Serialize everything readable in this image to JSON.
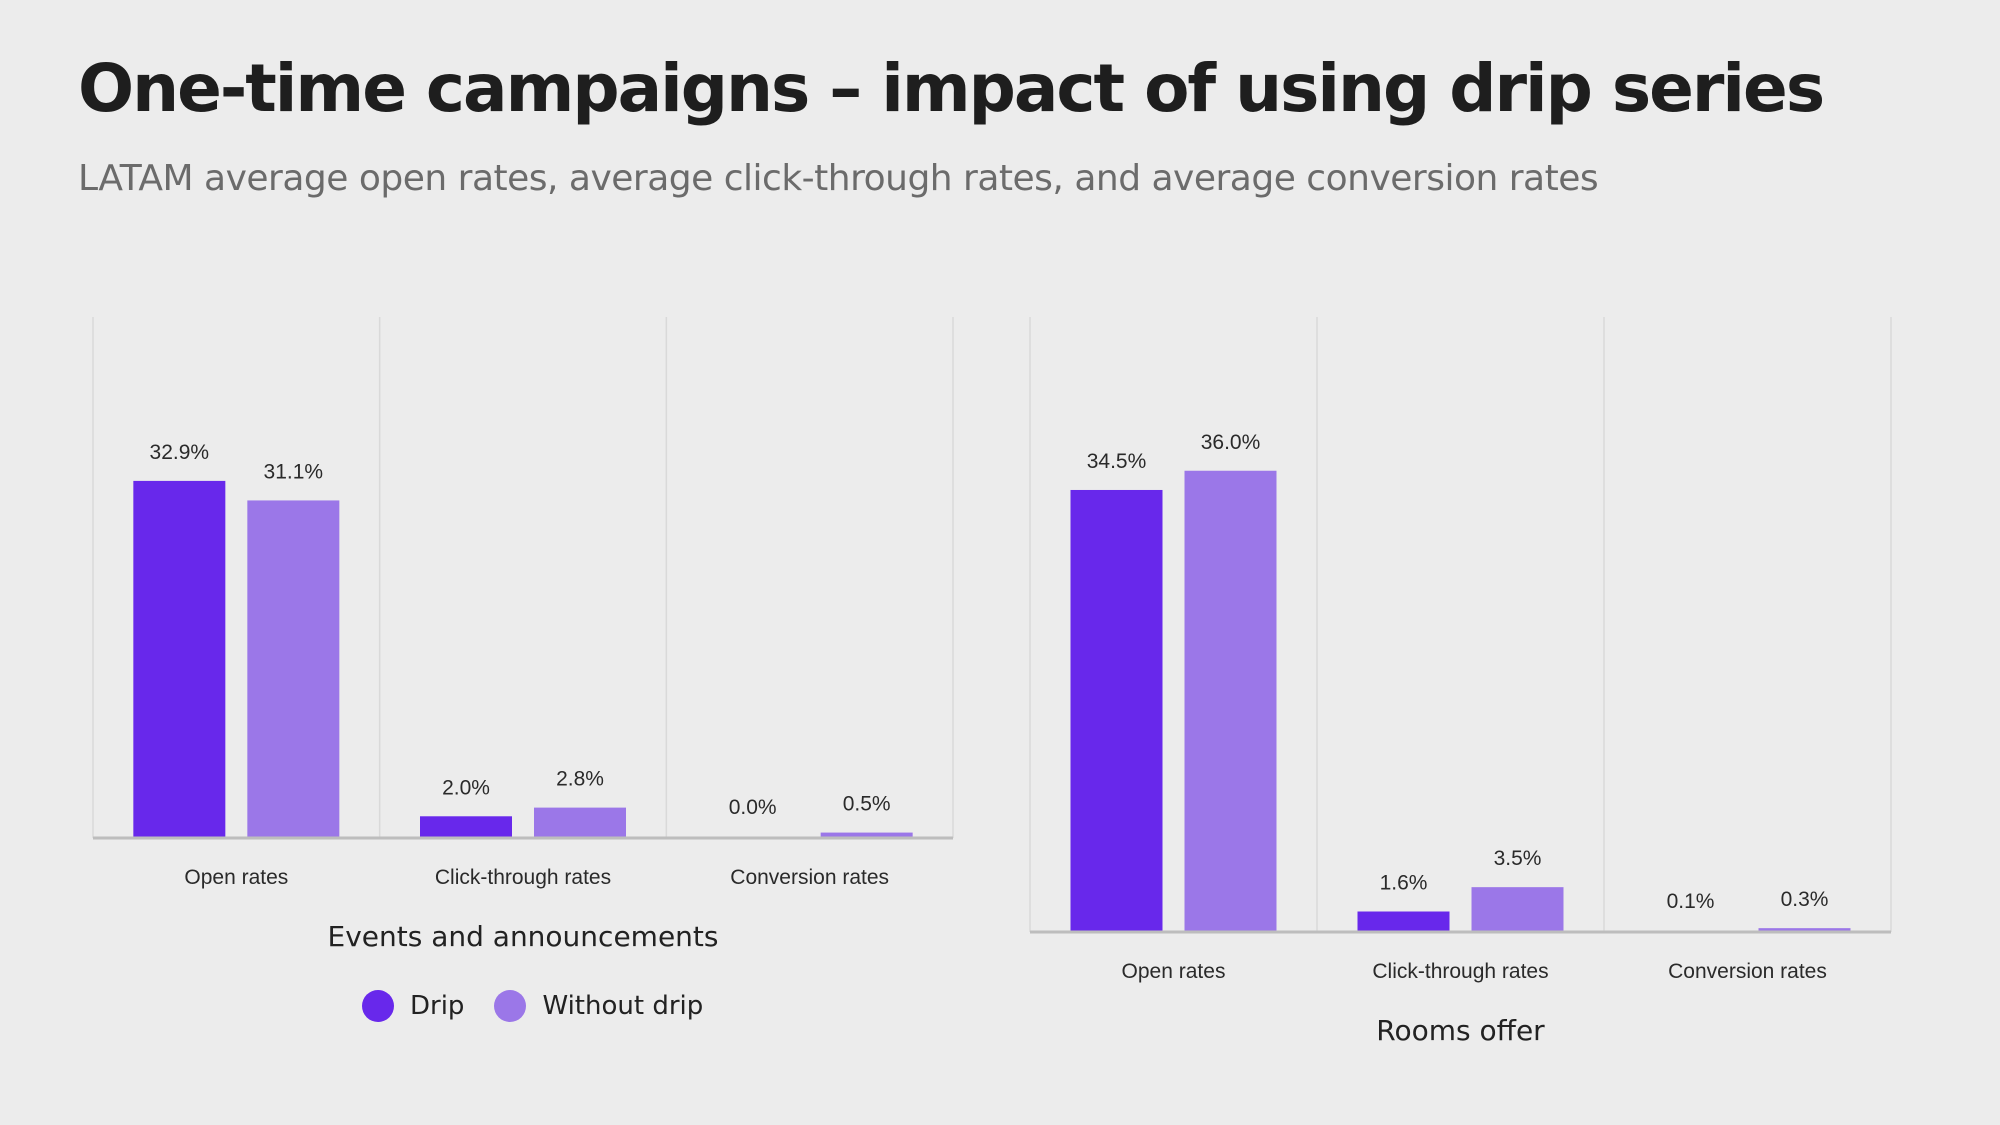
{
  "header": {
    "title": "One-time campaigns – impact of using drip series",
    "subtitle": "LATAM average open rates, average click-through rates, and average conversion rates"
  },
  "legend": [
    {
      "label": "Drip",
      "color": "#6828EB"
    },
    {
      "label": "Without drip",
      "color": "#9B77E8"
    }
  ],
  "chart_data": [
    {
      "type": "bar",
      "title": "Events and announcements",
      "categories": [
        "Open rates",
        "Click-through rates",
        "Conversion rates"
      ],
      "series": [
        {
          "name": "Drip",
          "color": "#6828EB",
          "values": [
            32.9,
            2.0,
            0.0
          ],
          "labels": [
            "32.9%",
            "2.0%",
            "0.0%"
          ]
        },
        {
          "name": "Without drip",
          "color": "#9B77E8",
          "values": [
            31.1,
            2.8,
            0.5
          ],
          "labels": [
            "31.1%",
            "2.8%",
            "0.5%"
          ]
        }
      ],
      "xlabel": "",
      "ylabel": "",
      "ylim": [
        0,
        48
      ],
      "unit": "%",
      "grid": "vertical category separators",
      "legend_position": "bottom"
    },
    {
      "type": "bar",
      "title": "Rooms offer",
      "categories": [
        "Open rates",
        "Click-through rates",
        "Conversion rates"
      ],
      "series": [
        {
          "name": "Drip",
          "color": "#6828EB",
          "values": [
            34.5,
            1.6,
            0.1
          ],
          "labels": [
            "34.5%",
            "1.6%",
            "0.1%"
          ]
        },
        {
          "name": "Without drip",
          "color": "#9B77E8",
          "values": [
            36.0,
            3.5,
            0.3
          ],
          "labels": [
            "36.0%",
            "3.5%",
            "0.3%"
          ]
        }
      ],
      "xlabel": "",
      "ylabel": "",
      "ylim": [
        0,
        48
      ],
      "unit": "%",
      "grid": "vertical category separators",
      "legend_position": "none"
    }
  ]
}
